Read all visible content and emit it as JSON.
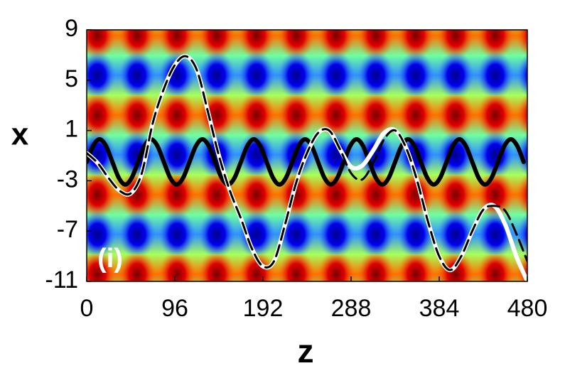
{
  "chart_data": {
    "type": "line",
    "x_label": "z",
    "y_label": "x",
    "annotation": "(i)",
    "xlim": [
      0,
      480
    ],
    "xticks": [
      0,
      96,
      192,
      288,
      384,
      480
    ],
    "ylim": [
      -11,
      9
    ],
    "yticks": [
      9,
      5,
      1,
      -3,
      -7,
      -11
    ],
    "series": [
      {
        "color": "#000000",
        "line_style": "solid",
        "x": [
          0,
          7,
          14,
          21,
          28,
          35,
          42,
          49,
          56,
          63,
          70,
          77,
          84,
          91,
          98,
          105,
          112,
          119,
          126,
          133,
          140,
          147,
          154,
          161,
          168,
          175,
          182,
          189,
          196,
          203,
          210,
          217,
          224,
          231,
          238,
          245,
          252,
          259,
          266,
          273,
          280,
          287,
          294,
          301,
          308,
          315,
          322,
          329,
          336,
          343,
          350,
          357,
          364,
          371,
          378,
          385,
          392,
          399,
          406,
          413,
          420,
          427,
          434,
          441,
          448,
          455,
          462,
          469,
          476
        ],
        "values": [
          -1.5,
          -0.23,
          0.3,
          -0.23,
          -1.5,
          -2.77,
          -3.3,
          -2.77,
          -1.5,
          -0.23,
          0.3,
          -0.23,
          -1.5,
          -2.77,
          -3.3,
          -2.77,
          -1.5,
          -0.23,
          0.3,
          -0.23,
          -1.5,
          -2.77,
          -3.3,
          -2.77,
          -1.5,
          -0.23,
          0.3,
          -0.23,
          -1.5,
          -2.77,
          -3.3,
          -2.77,
          -1.5,
          -0.23,
          0.3,
          -0.23,
          -1.5,
          -2.77,
          -3.3,
          -2.77,
          -1.5,
          -0.23,
          0.3,
          -0.23,
          -1.5,
          -2.77,
          -3.3,
          -2.77,
          -1.5,
          -0.23,
          0.3,
          -0.23,
          -1.5,
          -2.77,
          -3.3,
          -2.77,
          -1.5,
          -0.23,
          0.3,
          -0.23,
          -1.5,
          -2.77,
          -3.3,
          -2.77,
          -1.5,
          -0.23,
          0.3,
          -0.23,
          -1.5
        ]
      },
      {
        "color": "#ffffff",
        "line_style": "solid",
        "x": [
          0,
          12,
          24,
          36,
          48,
          60,
          72,
          84,
          96,
          108,
          120,
          132,
          144,
          156,
          168,
          180,
          192,
          204,
          216,
          228,
          240,
          252,
          264,
          276,
          288,
          300,
          312,
          324,
          336,
          348,
          360,
          372,
          384,
          396,
          408,
          420,
          432,
          444,
          456,
          468,
          480
        ],
        "values": [
          -0.8,
          -1.6,
          -2.8,
          -3.8,
          -4.0,
          -2.4,
          1.6,
          4.3,
          6.2,
          6.9,
          5.8,
          2.5,
          -1.0,
          -3.8,
          -6.0,
          -8.4,
          -9.8,
          -9.4,
          -6.5,
          -3.2,
          -0.8,
          0.8,
          1.0,
          -0.5,
          -1.9,
          -1.8,
          -0.6,
          0.8,
          1.0,
          -0.4,
          -3.0,
          -6.3,
          -9.0,
          -10.1,
          -9.0,
          -7.0,
          -5.3,
          -5.0,
          -6.5,
          -9.0,
          -11.0
        ]
      },
      {
        "color": "#000000",
        "line_style": "dashed",
        "x": [
          0,
          12,
          24,
          36,
          48,
          60,
          72,
          84,
          96,
          108,
          120,
          132,
          144,
          156,
          168,
          180,
          192,
          204,
          216,
          228,
          240,
          252,
          264,
          276,
          288,
          300,
          312,
          324,
          336,
          348,
          360,
          372,
          384,
          396,
          408,
          420,
          432,
          444,
          456,
          468,
          480
        ],
        "values": [
          -0.8,
          -1.6,
          -2.8,
          -3.8,
          -4.0,
          -2.4,
          1.6,
          4.3,
          6.2,
          6.9,
          5.8,
          2.5,
          -1.0,
          -3.8,
          -6.0,
          -8.4,
          -9.8,
          -9.4,
          -6.5,
          -3.2,
          -0.8,
          0.8,
          1.0,
          -0.5,
          -2.4,
          -2.9,
          -1.6,
          0.3,
          1.0,
          -0.4,
          -3.0,
          -6.3,
          -9.0,
          -10.1,
          -9.0,
          -7.0,
          -5.3,
          -5.0,
          -5.4,
          -7.2,
          -9.4
        ]
      }
    ]
  }
}
